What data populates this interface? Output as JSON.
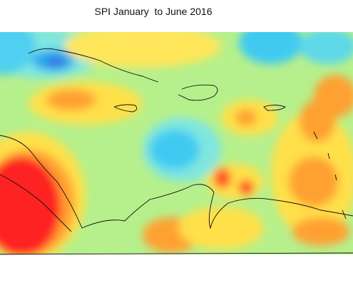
{
  "title": "SPI January  to June 2016"
}
